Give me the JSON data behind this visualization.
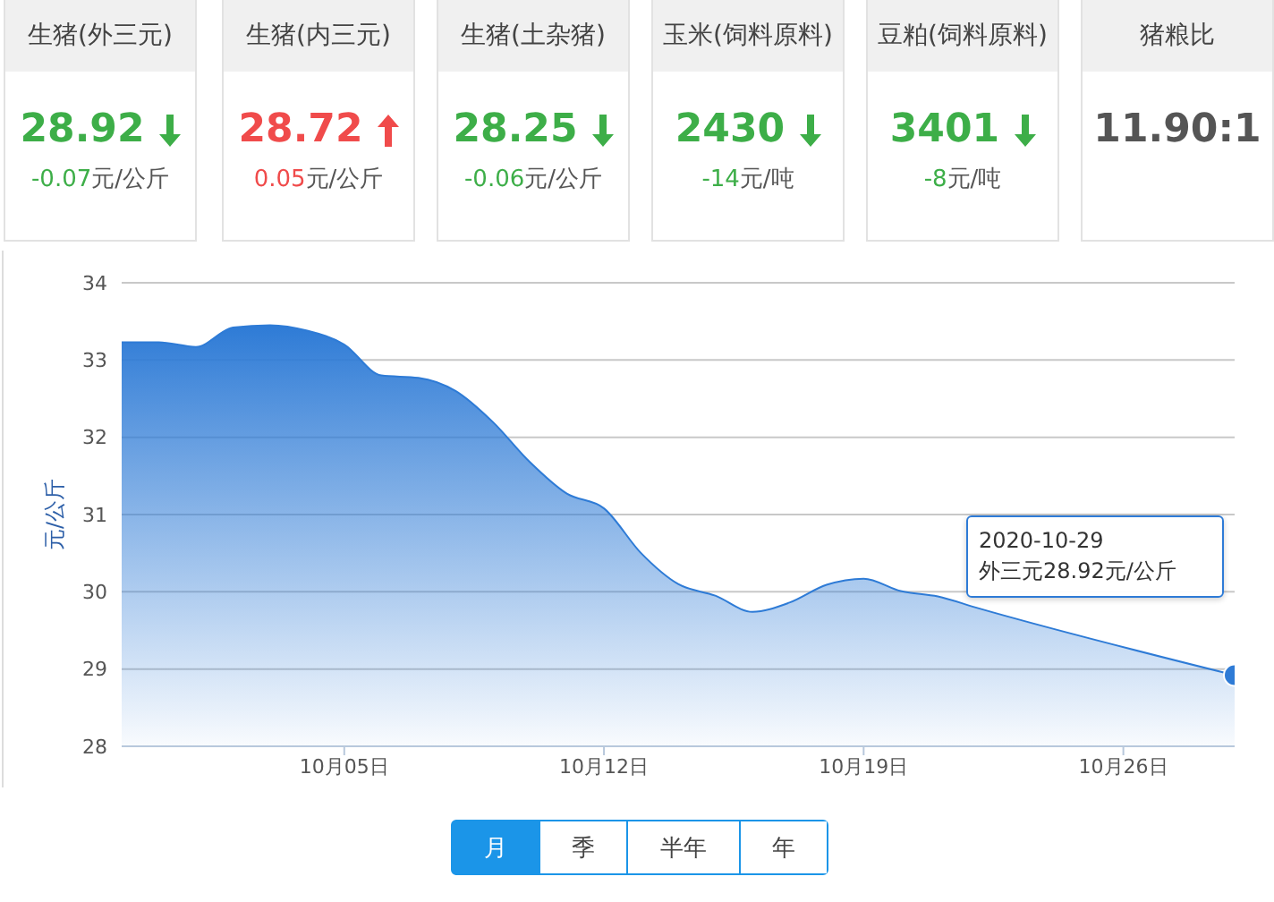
{
  "chart_data": [
    {
      "type": "other",
      "categories": [
        "生猪(外三元)",
        "生猪(内三元)",
        "生猪(土杂猪)",
        "玉米(饲料原料)",
        "豆粕(饲料原料)",
        "猪粮比"
      ],
      "annotations": [
        "28.92",
        "-0.07元/公斤",
        "28.72",
        "0.05元/公斤",
        "28.25",
        "-0.06元/公斤",
        "2430",
        "-14元/吨",
        "3401",
        "-8元/吨",
        "11.90:1"
      ]
    },
    {
      "type": "area",
      "ylabel": "元/公斤",
      "x": [
        "2020-09-29",
        "2020-09-30",
        "2020-10-01",
        "2020-10-02",
        "2020-10-03",
        "2020-10-04",
        "2020-10-05",
        "2020-10-06",
        "2020-10-07",
        "2020-10-08",
        "2020-10-09",
        "2020-10-10",
        "2020-10-11",
        "2020-10-12",
        "2020-10-13",
        "2020-10-14",
        "2020-10-15",
        "2020-10-16",
        "2020-10-17",
        "2020-10-18",
        "2020-10-19",
        "2020-10-20",
        "2020-10-21",
        "2020-10-22",
        "2020-10-23",
        "2020-10-24",
        "2020-10-25",
        "2020-10-26",
        "2020-10-27",
        "2020-10-28",
        "2020-10-29"
      ],
      "series": [
        {
          "color": "#2e7bd6",
          "values": [
            33.23,
            33.23,
            33.17,
            33.42,
            33.45,
            33.38,
            33.2,
            32.8,
            32.77,
            32.6,
            32.2,
            31.68,
            31.27,
            31.08,
            30.5,
            30.1,
            29.95,
            29.74,
            29.86,
            30.09,
            30.17,
            30.01,
            29.94,
            29.8,
            null,
            null,
            null,
            null,
            null,
            null,
            28.92
          ]
        }
      ],
      "xlim": [
        "2020-09-29",
        "2020-10-29"
      ],
      "xticks": [
        {
          "value": "2020-10-05",
          "label": "10月05日"
        },
        {
          "value": "2020-10-12",
          "label": "10月12日"
        },
        {
          "value": "2020-10-19",
          "label": "10月19日"
        },
        {
          "value": "2020-10-26",
          "label": "10月26日"
        }
      ],
      "ylim": [
        28,
        34
      ],
      "yticks": [
        28,
        29,
        30,
        31,
        32,
        33,
        34
      ],
      "grid": "y",
      "annotations": [
        "2020-10-29\n外三元28.92元/公斤",
        "月",
        "季",
        "半年",
        "年"
      ]
    }
  ]
}
